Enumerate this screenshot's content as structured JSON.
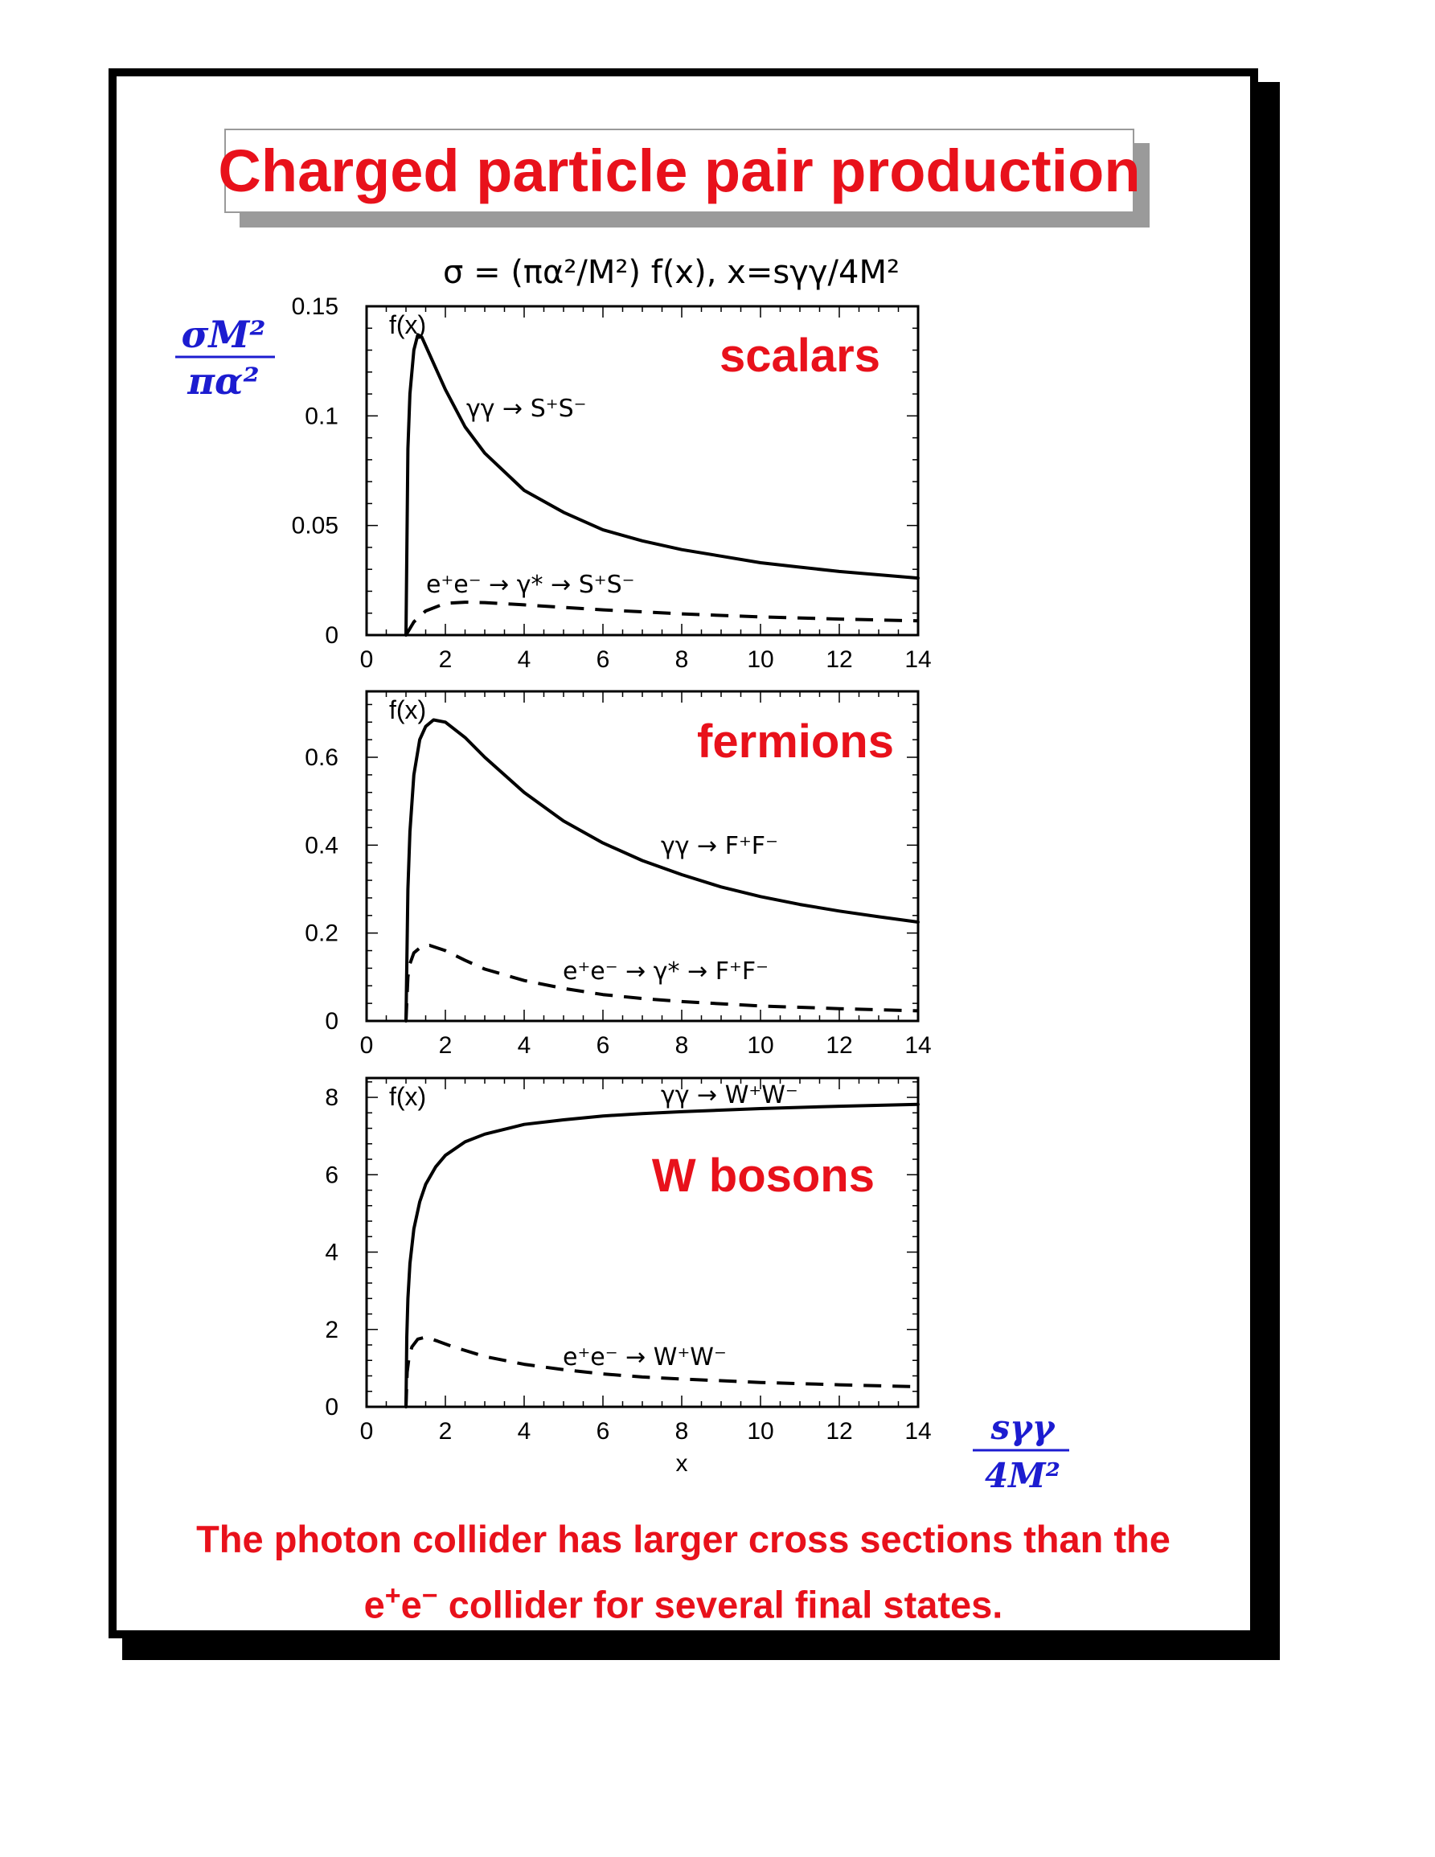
{
  "title": "Charged particle pair production",
  "formula": "σ = (πα²/M²) f(x), x=sγγ/4M²",
  "y_axis_label": {
    "numerator": "σM²",
    "denominator": "πα²"
  },
  "x_axis_label": {
    "numerator": "sγγ",
    "denominator": "4M²"
  },
  "caption": {
    "line1": "The photon collider has larger cross sections than the",
    "line2_particle": "e",
    "line2_plus": "+",
    "line2_particle2": "e",
    "line2_minus": "−",
    "line2_rest": "collider for several final states."
  },
  "colors": {
    "accent_red": "#e8111b",
    "label_blue": "#1c1cd0",
    "curve": "#000000"
  },
  "chart_data": [
    {
      "type": "line",
      "panel_label": "scalars",
      "ylabel": "f(x)",
      "xlim": [
        0,
        14
      ],
      "ylim": [
        0,
        0.15
      ],
      "xticks": [
        "0",
        "2",
        "4",
        "6",
        "8",
        "10",
        "12",
        "14"
      ],
      "yticks": [
        "0",
        "0.05",
        "0.1",
        "0.15"
      ],
      "series": [
        {
          "name": "γγ → S⁺S⁻",
          "style": "solid",
          "x": [
            1.0,
            1.05,
            1.1,
            1.2,
            1.3,
            1.4,
            1.6,
            1.8,
            2.0,
            2.5,
            3.0,
            4.0,
            5.0,
            6.0,
            7.0,
            8.0,
            9.0,
            10.0,
            11.0,
            12.0,
            13.0,
            14.0
          ],
          "y": [
            0.0,
            0.085,
            0.11,
            0.13,
            0.137,
            0.136,
            0.128,
            0.12,
            0.112,
            0.095,
            0.083,
            0.066,
            0.056,
            0.048,
            0.043,
            0.039,
            0.036,
            0.033,
            0.031,
            0.029,
            0.0275,
            0.026
          ]
        },
        {
          "name": "e⁺e⁻ → γ* → S⁺S⁻",
          "style": "dashed",
          "x": [
            1.0,
            1.2,
            1.5,
            2.0,
            2.5,
            3.0,
            4.0,
            5.0,
            6.0,
            8.0,
            10.0,
            12.0,
            14.0
          ],
          "y": [
            0.0,
            0.006,
            0.011,
            0.0145,
            0.015,
            0.0148,
            0.0138,
            0.0126,
            0.0115,
            0.0097,
            0.0083,
            0.0073,
            0.0065
          ]
        }
      ]
    },
    {
      "type": "line",
      "panel_label": "fermions",
      "ylabel": "f(x)",
      "xlim": [
        0,
        14
      ],
      "ylim": [
        0,
        0.75
      ],
      "xticks": [
        "0",
        "2",
        "4",
        "6",
        "8",
        "10",
        "12",
        "14"
      ],
      "yticks": [
        "0",
        "0.2",
        "0.4",
        "0.6"
      ],
      "series": [
        {
          "name": "γγ → F⁺F⁻",
          "style": "solid",
          "x": [
            1.0,
            1.05,
            1.1,
            1.2,
            1.35,
            1.5,
            1.7,
            2.0,
            2.5,
            3.0,
            4.0,
            5.0,
            6.0,
            7.0,
            8.0,
            9.0,
            10.0,
            11.0,
            12.0,
            13.0,
            14.0
          ],
          "y": [
            0.0,
            0.3,
            0.43,
            0.56,
            0.64,
            0.67,
            0.685,
            0.68,
            0.645,
            0.6,
            0.52,
            0.455,
            0.405,
            0.365,
            0.333,
            0.305,
            0.283,
            0.265,
            0.25,
            0.237,
            0.225
          ]
        },
        {
          "name": "e⁺e⁻ → γ* → F⁺F⁻",
          "style": "dashed",
          "x": [
            1.0,
            1.05,
            1.1,
            1.2,
            1.4,
            1.6,
            2.0,
            2.5,
            3.0,
            4.0,
            5.0,
            6.0,
            7.0,
            8.0,
            10.0,
            12.0,
            14.0
          ],
          "y": [
            0.0,
            0.1,
            0.13,
            0.155,
            0.17,
            0.172,
            0.16,
            0.138,
            0.118,
            0.092,
            0.074,
            0.06,
            0.051,
            0.044,
            0.034,
            0.028,
            0.023
          ]
        }
      ]
    },
    {
      "type": "line",
      "panel_label": "W bosons",
      "ylabel": "f(x)",
      "xlabel": "x",
      "xlim": [
        0,
        14
      ],
      "ylim": [
        0,
        8.5
      ],
      "xticks": [
        "0",
        "2",
        "4",
        "6",
        "8",
        "10",
        "12",
        "14"
      ],
      "yticks": [
        "0",
        "2",
        "4",
        "6",
        "8"
      ],
      "series": [
        {
          "name": "γγ → W⁺W⁻",
          "style": "solid",
          "x": [
            1.0,
            1.02,
            1.05,
            1.1,
            1.2,
            1.35,
            1.5,
            1.75,
            2.0,
            2.5,
            3.0,
            4.0,
            5.0,
            6.0,
            7.0,
            8.0,
            10.0,
            12.0,
            14.0
          ],
          "y": [
            0.0,
            1.8,
            2.8,
            3.7,
            4.6,
            5.3,
            5.75,
            6.2,
            6.5,
            6.85,
            7.05,
            7.3,
            7.42,
            7.52,
            7.58,
            7.63,
            7.71,
            7.77,
            7.82
          ]
        },
        {
          "name": "e⁺e⁻ → W⁺W⁻",
          "style": "dashed",
          "x": [
            1.0,
            1.03,
            1.08,
            1.15,
            1.3,
            1.5,
            1.8,
            2.2,
            3.0,
            4.0,
            5.0,
            6.0,
            7.0,
            8.0,
            10.0,
            12.0,
            14.0
          ],
          "y": [
            0.0,
            0.9,
            1.3,
            1.55,
            1.75,
            1.8,
            1.7,
            1.55,
            1.3,
            1.1,
            0.96,
            0.85,
            0.77,
            0.72,
            0.63,
            0.57,
            0.52
          ]
        }
      ]
    }
  ]
}
